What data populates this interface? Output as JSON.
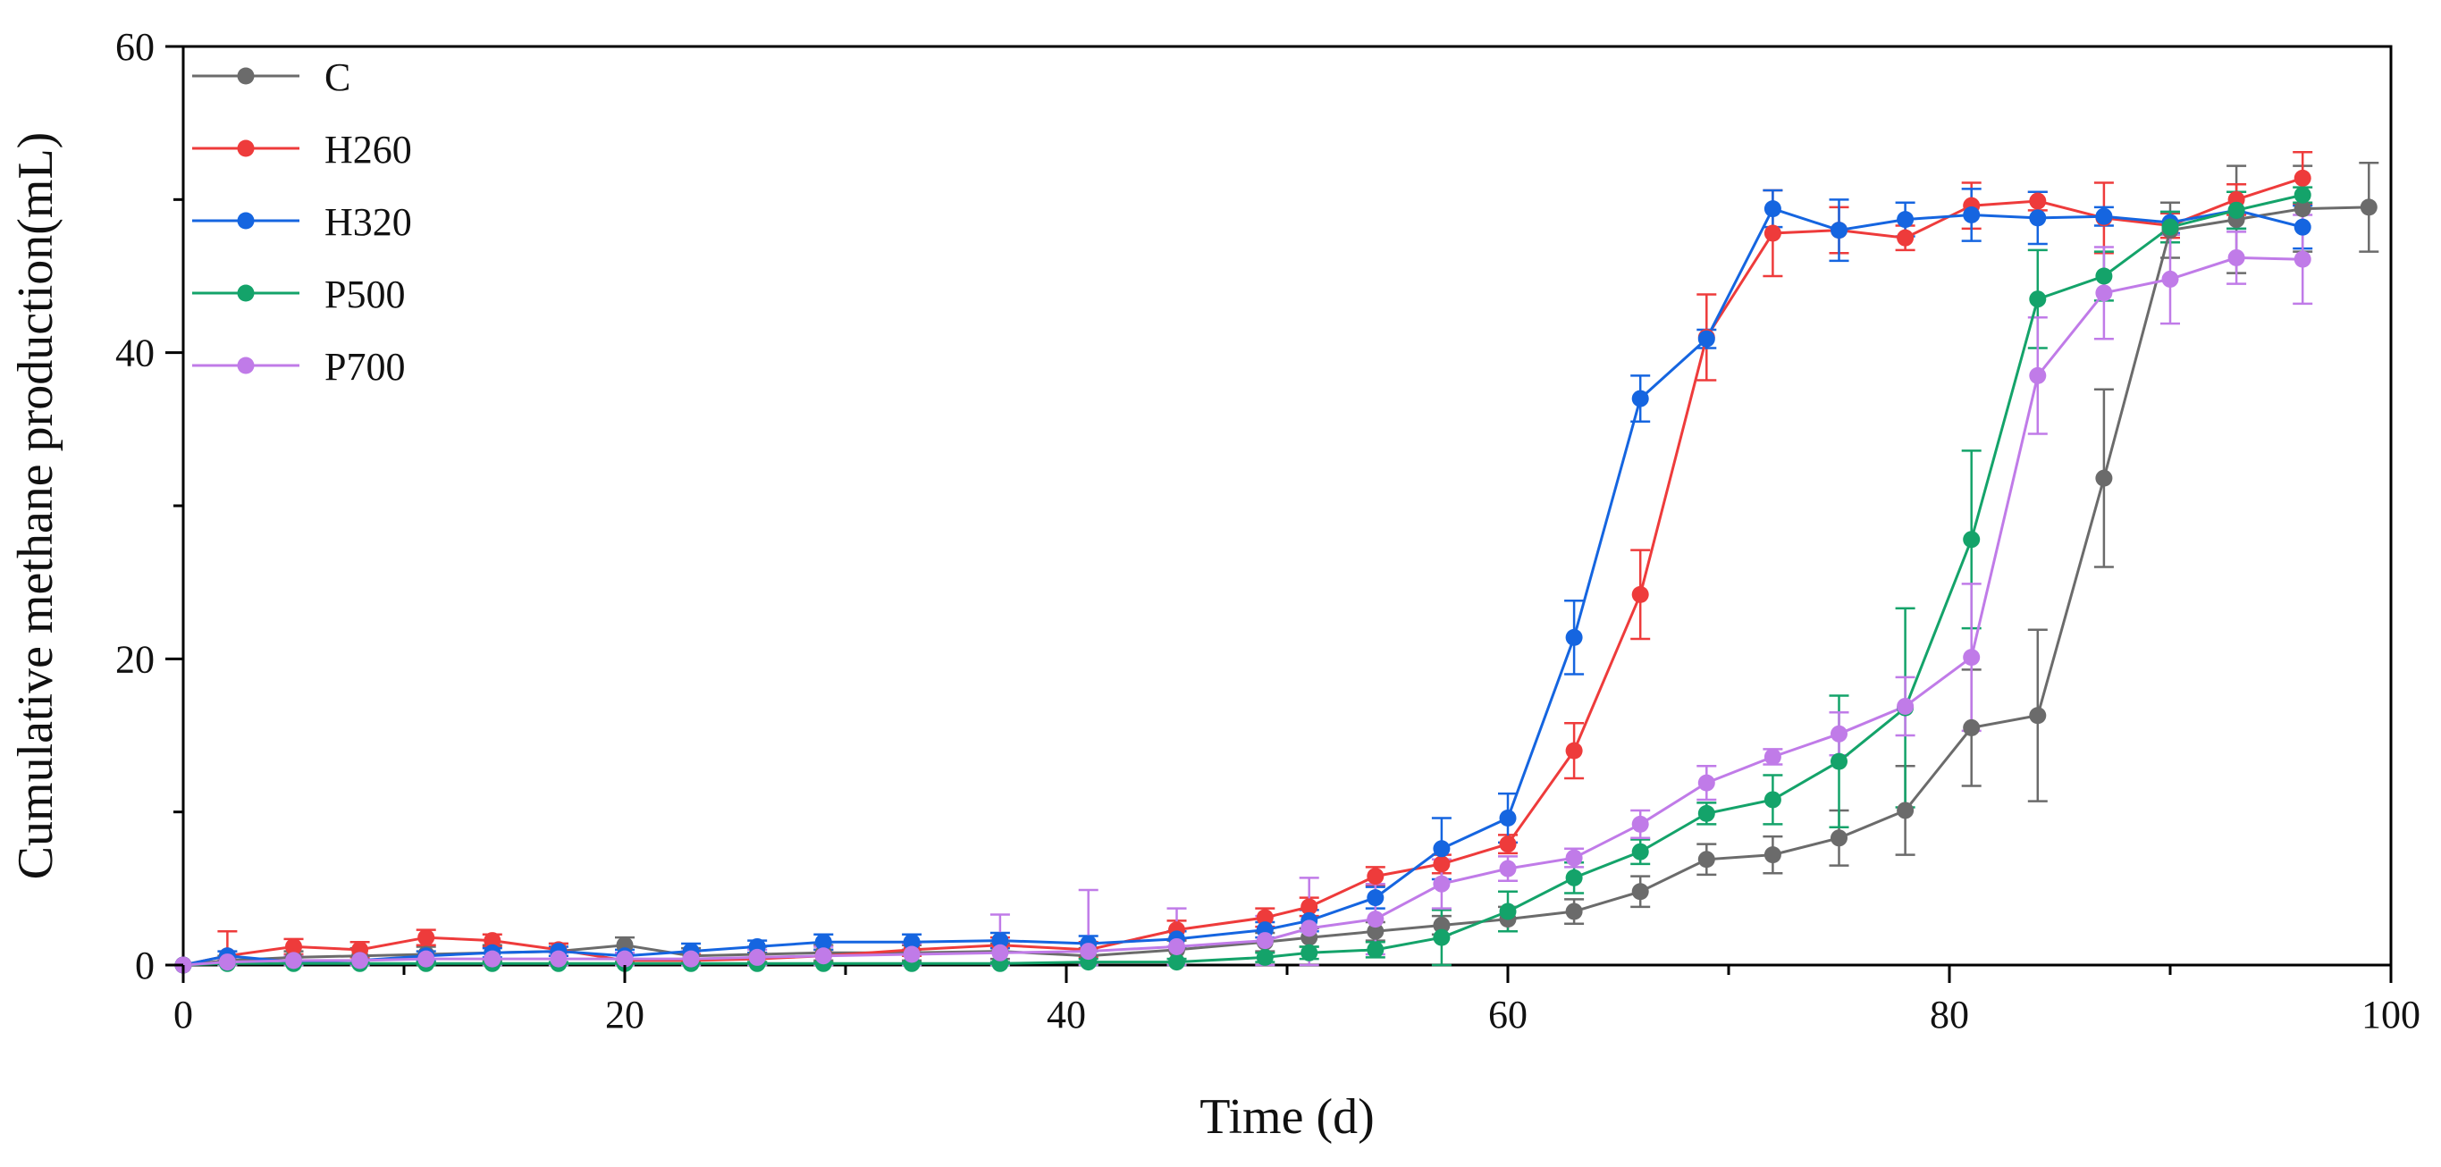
{
  "chart_data": {
    "type": "line",
    "title": "",
    "xlabel": "Time (d)",
    "ylabel": "Cumulative methane production(mL)",
    "xlim": [
      0,
      100
    ],
    "ylim": [
      0,
      60
    ],
    "xticks": [
      0,
      20,
      40,
      60,
      80,
      100
    ],
    "yticks": [
      0,
      20,
      40,
      60
    ],
    "x_minor_step": 10,
    "y_minor_step": 10,
    "grid": false,
    "legend_position": "top-left",
    "series": [
      {
        "name": "C",
        "color": "#6b6b6b",
        "x": [
          0,
          2,
          5,
          8,
          11,
          14,
          17,
          20,
          23,
          26,
          29,
          33,
          37,
          41,
          45,
          49,
          51,
          54,
          57,
          60,
          63,
          66,
          69,
          72,
          75,
          78,
          81,
          84,
          87,
          90,
          93,
          96,
          99
        ],
        "y": [
          0,
          0.3,
          0.5,
          0.6,
          0.7,
          0.8,
          0.9,
          1.3,
          0.6,
          0.7,
          0.8,
          0.8,
          0.9,
          0.6,
          1.0,
          1.5,
          1.8,
          2.2,
          2.6,
          3.0,
          3.5,
          4.8,
          6.9,
          7.2,
          8.3,
          10.1,
          15.5,
          16.3,
          31.8,
          48.0,
          48.7,
          49.4,
          49.5
        ],
        "err": [
          0,
          0.3,
          0.4,
          0.5,
          0.5,
          0.5,
          0.5,
          0.5,
          0.5,
          0.5,
          0.5,
          0.5,
          0.5,
          0.5,
          0.6,
          0.6,
          0.6,
          0.6,
          0.6,
          0.8,
          0.8,
          1.0,
          1.0,
          1.2,
          1.8,
          2.9,
          3.8,
          5.6,
          5.8,
          1.8,
          3.5,
          2.8,
          2.9
        ]
      },
      {
        "name": "H260",
        "color": "#ee3b3b",
        "x": [
          0,
          2,
          5,
          8,
          11,
          14,
          17,
          20,
          23,
          26,
          29,
          33,
          37,
          41,
          45,
          49,
          51,
          54,
          57,
          60,
          63,
          66,
          69,
          72,
          75,
          78,
          81,
          84,
          87,
          90,
          93,
          96
        ],
        "y": [
          0,
          0.6,
          1.2,
          1.0,
          1.8,
          1.6,
          1.0,
          0.3,
          0.3,
          0.4,
          0.6,
          1.0,
          1.3,
          1.0,
          2.3,
          3.1,
          3.8,
          5.8,
          6.6,
          7.9,
          14.0,
          24.2,
          41.0,
          47.8,
          48.0,
          47.5,
          49.6,
          49.9,
          48.8,
          48.3,
          50.0,
          51.4
        ],
        "err": [
          0,
          1.6,
          0.5,
          0.5,
          0.5,
          0.4,
          0.4,
          0.4,
          0.4,
          0.4,
          0.4,
          0.4,
          0.5,
          0.5,
          0.6,
          0.6,
          0.6,
          0.6,
          0.6,
          0.6,
          1.8,
          2.9,
          2.8,
          2.8,
          1.5,
          0.8,
          1.5,
          0.6,
          2.3,
          0.8,
          1.0,
          1.7
        ]
      },
      {
        "name": "H320",
        "color": "#1565e0",
        "x": [
          0,
          2,
          5,
          8,
          11,
          14,
          17,
          20,
          23,
          26,
          29,
          33,
          37,
          41,
          45,
          49,
          51,
          54,
          57,
          60,
          63,
          66,
          69,
          72,
          75,
          78,
          81,
          84,
          87,
          90,
          93,
          96
        ],
        "y": [
          0,
          0.6,
          0.2,
          0.3,
          0.6,
          0.8,
          0.9,
          0.6,
          0.9,
          1.2,
          1.5,
          1.5,
          1.6,
          1.4,
          1.7,
          2.3,
          2.9,
          4.4,
          7.6,
          9.6,
          21.4,
          37.0,
          40.9,
          49.4,
          48.0,
          48.7,
          49.0,
          48.8,
          48.9,
          48.5,
          49.3,
          48.2
        ],
        "err": [
          0,
          0.3,
          0.3,
          0.3,
          0.3,
          0.3,
          0.3,
          0.4,
          0.5,
          0.4,
          0.5,
          0.5,
          0.5,
          0.5,
          0.5,
          0.5,
          0.7,
          0.7,
          2.0,
          1.6,
          2.4,
          1.5,
          0.6,
          1.2,
          2.0,
          1.1,
          1.7,
          1.7,
          0.6,
          0.7,
          1.2,
          1.4
        ]
      },
      {
        "name": "P500",
        "color": "#14a36a",
        "x": [
          0,
          2,
          5,
          8,
          11,
          14,
          17,
          20,
          23,
          26,
          29,
          33,
          37,
          41,
          45,
          49,
          51,
          54,
          57,
          60,
          63,
          66,
          69,
          72,
          75,
          78,
          81,
          84,
          87,
          90,
          93,
          96
        ],
        "y": [
          0,
          0.1,
          0.1,
          0.1,
          0.1,
          0.1,
          0.1,
          0.1,
          0.1,
          0.1,
          0.1,
          0.1,
          0.1,
          0.2,
          0.2,
          0.5,
          0.8,
          1.0,
          1.8,
          3.5,
          5.7,
          7.4,
          9.9,
          10.8,
          13.3,
          16.8,
          27.8,
          43.5,
          45.0,
          48.2,
          49.3,
          50.3
        ],
        "err": [
          0,
          0.1,
          0.1,
          0.1,
          0.1,
          0.1,
          0.1,
          0.1,
          0.1,
          0.1,
          0.1,
          0.1,
          0.1,
          0.2,
          0.2,
          0.3,
          0.4,
          0.5,
          1.8,
          1.3,
          1.0,
          0.8,
          0.7,
          1.6,
          4.3,
          6.5,
          5.8,
          3.2,
          1.6,
          1.0,
          1.2,
          0.5
        ]
      },
      {
        "name": "P700",
        "color": "#c07be8",
        "x": [
          0,
          2,
          5,
          8,
          11,
          14,
          17,
          20,
          23,
          26,
          29,
          33,
          37,
          41,
          45,
          49,
          51,
          54,
          57,
          60,
          63,
          66,
          69,
          72,
          75,
          78,
          81,
          84,
          87,
          90,
          93,
          96
        ],
        "y": [
          0,
          0.2,
          0.3,
          0.3,
          0.4,
          0.4,
          0.4,
          0.4,
          0.4,
          0.5,
          0.6,
          0.7,
          0.8,
          0.9,
          1.2,
          1.6,
          2.4,
          3.0,
          5.3,
          6.3,
          7.0,
          9.2,
          11.9,
          13.6,
          15.1,
          16.9,
          20.1,
          38.5,
          43.9,
          44.8,
          46.2,
          46.1
        ],
        "err": [
          0,
          0.2,
          0.3,
          0.3,
          0.3,
          0.4,
          0.4,
          0.4,
          0.5,
          0.5,
          0.6,
          0.7,
          2.5,
          4.0,
          2.5,
          1.6,
          3.3,
          2.3,
          1.6,
          0.8,
          0.6,
          0.9,
          1.1,
          0.5,
          1.4,
          1.9,
          4.8,
          3.8,
          3.0,
          2.9,
          1.7,
          2.9
        ]
      }
    ]
  }
}
